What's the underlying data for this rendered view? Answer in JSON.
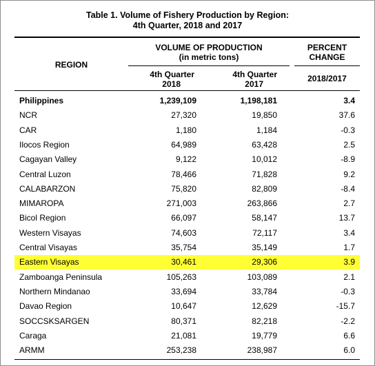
{
  "table": {
    "title_line1": "Table 1. Volume of Fishery Production by Region:",
    "title_line2": "4th Quarter, 2018 and 2017",
    "headers": {
      "region": "REGION",
      "volume_line1": "VOLUME OF PRODUCTION",
      "volume_line2": "(in metric tons)",
      "q2018_line1": "4th Quarter",
      "q2018_line2": "2018",
      "q2017_line1": "4th Quarter",
      "q2017_line2": "2017",
      "percent_line1": "PERCENT",
      "percent_line2": "CHANGE",
      "percent_sub": "2018/2017"
    },
    "highlight_color": "#ffff33",
    "rows": [
      {
        "region": "Philippines",
        "q2018": "1,239,109",
        "q2017": "1,198,181",
        "pct": "3.4"
      },
      {
        "region": "NCR",
        "q2018": "27,320",
        "q2017": "19,850",
        "pct": "37.6"
      },
      {
        "region": "CAR",
        "q2018": "1,180",
        "q2017": "1,184",
        "pct": "-0.3"
      },
      {
        "region": "Ilocos Region",
        "q2018": "64,989",
        "q2017": "63,428",
        "pct": "2.5"
      },
      {
        "region": "Cagayan Valley",
        "q2018": "9,122",
        "q2017": "10,012",
        "pct": "-8.9"
      },
      {
        "region": "Central Luzon",
        "q2018": "78,466",
        "q2017": "71,828",
        "pct": "9.2"
      },
      {
        "region": "CALABARZON",
        "q2018": "75,820",
        "q2017": "82,809",
        "pct": "-8.4"
      },
      {
        "region": "MIMAROPA",
        "q2018": "271,003",
        "q2017": "263,866",
        "pct": "2.7"
      },
      {
        "region": "Bicol Region",
        "q2018": "66,097",
        "q2017": "58,147",
        "pct": "13.7"
      },
      {
        "region": "Western Visayas",
        "q2018": "74,603",
        "q2017": "72,117",
        "pct": "3.4"
      },
      {
        "region": "Central Visayas",
        "q2018": "35,754",
        "q2017": "35,149",
        "pct": "1.7"
      },
      {
        "region": "Eastern Visayas",
        "q2018": "30,461",
        "q2017": "29,306",
        "pct": "3.9"
      },
      {
        "region": "Zamboanga Peninsula",
        "q2018": "105,263",
        "q2017": "103,089",
        "pct": "2.1"
      },
      {
        "region": "Northern Mindanao",
        "q2018": "33,694",
        "q2017": "33,784",
        "pct": "-0.3"
      },
      {
        "region": "Davao Region",
        "q2018": "10,647",
        "q2017": "12,629",
        "pct": "-15.7"
      },
      {
        "region": "SOCCSKSARGEN",
        "q2018": "80,371",
        "q2017": "82,218",
        "pct": "-2.2"
      },
      {
        "region": "Caraga",
        "q2018": "21,081",
        "q2017": "19,779",
        "pct": "6.6"
      },
      {
        "region": "ARMM",
        "q2018": "253,238",
        "q2017": "238,987",
        "pct": "6.0"
      }
    ]
  }
}
